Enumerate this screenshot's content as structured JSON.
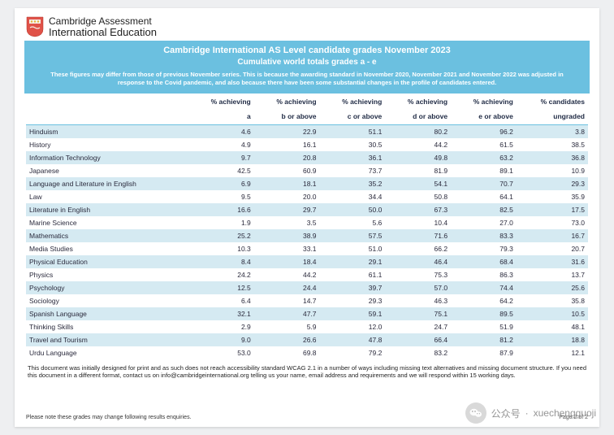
{
  "brand": {
    "top": "Cambridge Assessment",
    "bottom": "International Education",
    "shield_fill": "#d9534f",
    "shield_accent": "#f0b64b"
  },
  "banner": {
    "title": "Cambridge International AS Level candidate grades November 2023",
    "subtitle": "Cumulative world totals grades a - e",
    "note": "These figures may differ from those of previous November series. This is because the awarding standard in November 2020, November 2021 and November 2022 was adjusted in response to the Covid pandemic, and also because there have been some substantial changes in the profile of candidates entered."
  },
  "columns_line1": [
    "",
    "% achieving",
    "% achieving",
    "% achieving",
    "% achieving",
    "% achieving",
    "% candidates"
  ],
  "columns_line2": [
    "",
    "a",
    "b or above",
    "c or above",
    "d or above",
    "e or above",
    "ungraded"
  ],
  "rows": [
    {
      "s": "Hinduism",
      "a": "4.6",
      "b": "22.9",
      "c": "51.1",
      "d": "80.2",
      "e": "96.2",
      "u": "3.8"
    },
    {
      "s": "History",
      "a": "4.9",
      "b": "16.1",
      "c": "30.5",
      "d": "44.2",
      "e": "61.5",
      "u": "38.5"
    },
    {
      "s": "Information Technology",
      "a": "9.7",
      "b": "20.8",
      "c": "36.1",
      "d": "49.8",
      "e": "63.2",
      "u": "36.8"
    },
    {
      "s": "Japanese",
      "a": "42.5",
      "b": "60.9",
      "c": "73.7",
      "d": "81.9",
      "e": "89.1",
      "u": "10.9"
    },
    {
      "s": "Language and Literature in English",
      "a": "6.9",
      "b": "18.1",
      "c": "35.2",
      "d": "54.1",
      "e": "70.7",
      "u": "29.3"
    },
    {
      "s": "Law",
      "a": "9.5",
      "b": "20.0",
      "c": "34.4",
      "d": "50.8",
      "e": "64.1",
      "u": "35.9"
    },
    {
      "s": "Literature in English",
      "a": "16.6",
      "b": "29.7",
      "c": "50.0",
      "d": "67.3",
      "e": "82.5",
      "u": "17.5"
    },
    {
      "s": "Marine Science",
      "a": "1.9",
      "b": "3.5",
      "c": "5.6",
      "d": "10.4",
      "e": "27.0",
      "u": "73.0"
    },
    {
      "s": "Mathematics",
      "a": "25.2",
      "b": "38.9",
      "c": "57.5",
      "d": "71.6",
      "e": "83.3",
      "u": "16.7"
    },
    {
      "s": "Media Studies",
      "a": "10.3",
      "b": "33.1",
      "c": "51.0",
      "d": "66.2",
      "e": "79.3",
      "u": "20.7"
    },
    {
      "s": "Physical Education",
      "a": "8.4",
      "b": "18.4",
      "c": "29.1",
      "d": "46.4",
      "e": "68.4",
      "u": "31.6"
    },
    {
      "s": "Physics",
      "a": "24.2",
      "b": "44.2",
      "c": "61.1",
      "d": "75.3",
      "e": "86.3",
      "u": "13.7"
    },
    {
      "s": "Psychology",
      "a": "12.5",
      "b": "24.4",
      "c": "39.7",
      "d": "57.0",
      "e": "74.4",
      "u": "25.6"
    },
    {
      "s": "Sociology",
      "a": "6.4",
      "b": "14.7",
      "c": "29.3",
      "d": "46.3",
      "e": "64.2",
      "u": "35.8"
    },
    {
      "s": "Spanish Language",
      "a": "32.1",
      "b": "47.7",
      "c": "59.1",
      "d": "75.1",
      "e": "89.5",
      "u": "10.5"
    },
    {
      "s": "Thinking Skills",
      "a": "2.9",
      "b": "5.9",
      "c": "12.0",
      "d": "24.7",
      "e": "51.9",
      "u": "48.1"
    },
    {
      "s": "Travel and Tourism",
      "a": "9.0",
      "b": "26.6",
      "c": "47.8",
      "d": "66.4",
      "e": "81.2",
      "u": "18.8"
    },
    {
      "s": "Urdu Language",
      "a": "53.0",
      "b": "69.8",
      "c": "79.2",
      "d": "83.2",
      "e": "87.9",
      "u": "12.1"
    }
  ],
  "footnote": "This document was initially designed for print and as such does not reach accessibility standard WCAG 2.1 in a number of ways including missing text alternatives and missing document structure. If you need this document in a different format, contact us on info@cambridgeinternational.org telling us your name, email address and requirements and we will respond within 15 working days.",
  "bottom_left": "Please note these grades may change following results enquiries.",
  "bottom_right": "Page 2 of 2",
  "watermark": {
    "label": "公众号",
    "handle": "xuechengguoji"
  }
}
